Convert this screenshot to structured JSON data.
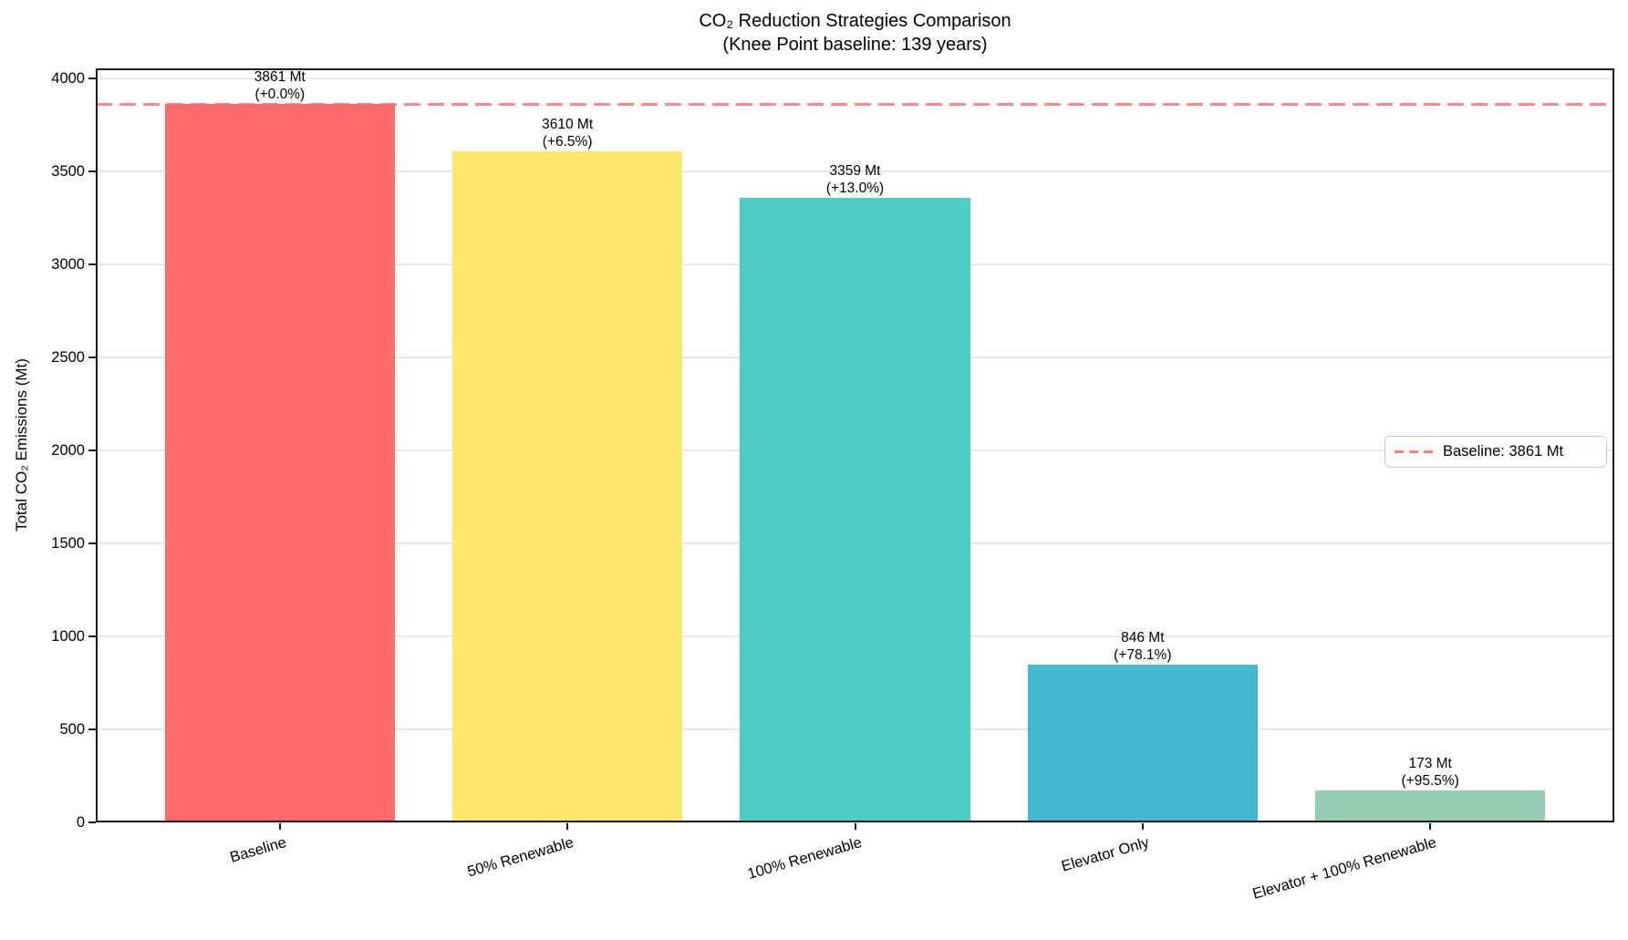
{
  "chart_data": {
    "type": "bar",
    "title": "CO₂ Reduction Strategies Comparison",
    "subtitle": "(Knee Point baseline: 139 years)",
    "xlabel": "",
    "ylabel": "Total CO₂ Emissions (Mt)",
    "categories": [
      "Baseline",
      "50% Renewable",
      "100% Renewable",
      "Elevator Only",
      "Elevator + 100% Renewable"
    ],
    "values": [
      3861,
      3610,
      3359,
      846,
      173
    ],
    "value_labels": [
      "3861 Mt\n(+0.0%)",
      "3610 Mt\n(+6.5%)",
      "3359 Mt\n(+13.0%)",
      "846 Mt\n(+78.1%)",
      "173 Mt\n(+95.5%)"
    ],
    "reduction_percent": [
      0.0,
      6.5,
      13.0,
      78.1,
      95.5
    ],
    "bar_colors": [
      "#ff6b6b",
      "#ffe66d",
      "#4ecdc4",
      "#45b7d1",
      "#96ceb4"
    ],
    "baseline_line": {
      "value": 3861,
      "color": "#ff6b6b",
      "style": "dashed",
      "legend_label": "Baseline: 3861 Mt"
    },
    "ylim": [
      0,
      4054
    ],
    "yticks": [
      0,
      500,
      1000,
      1500,
      2000,
      2500,
      3000,
      3500,
      4000
    ],
    "grid": "horizontal",
    "legend_position": "center right",
    "xtick_rotation": 16
  }
}
